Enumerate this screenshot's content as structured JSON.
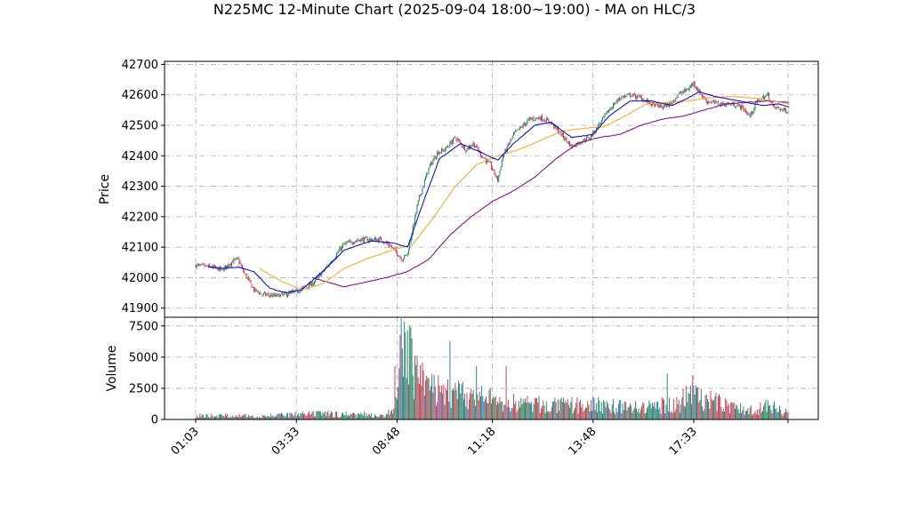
{
  "title": "N225MC 12-Minute Chart (2025-09-04 18:00~19:00) - MA on HLC/3",
  "colors": {
    "up": "#1a7f5a",
    "down": "#d62d4a",
    "vol_up": "#1a7f5a",
    "vol_down": "#d62d4a",
    "vol_alt": "#1f77b4",
    "ma_fast": "#0000cc",
    "ma_mid": "#f5a623",
    "ma_slow": "#800080",
    "grid": "#b0b0b0",
    "axis": "#000000"
  },
  "chart_data": [
    {
      "type": "candlestick",
      "ylabel": "Price",
      "ylim": [
        41870,
        42710
      ],
      "yticks": [
        41900,
        42000,
        42100,
        42200,
        42300,
        42400,
        42500,
        42600,
        42700
      ],
      "grid": true,
      "close_profile": [
        [
          0,
          42040
        ],
        [
          15,
          42035
        ],
        [
          25,
          42025
        ],
        [
          35,
          42055
        ],
        [
          40,
          42060
        ],
        [
          45,
          42020
        ],
        [
          55,
          41960
        ],
        [
          63,
          41945
        ],
        [
          75,
          41940
        ],
        [
          85,
          41945
        ],
        [
          95,
          41955
        ],
        [
          110,
          41980
        ],
        [
          125,
          42040
        ],
        [
          140,
          42110
        ],
        [
          155,
          42125
        ],
        [
          175,
          42125
        ],
        [
          185,
          42100
        ],
        [
          195,
          42060
        ],
        [
          200,
          42080
        ],
        [
          210,
          42250
        ],
        [
          220,
          42360
        ],
        [
          228,
          42410
        ],
        [
          235,
          42420
        ],
        [
          245,
          42460
        ],
        [
          255,
          42420
        ],
        [
          262,
          42440
        ],
        [
          270,
          42400
        ],
        [
          278,
          42370
        ],
        [
          285,
          42320
        ],
        [
          290,
          42400
        ],
        [
          300,
          42470
        ],
        [
          315,
          42520
        ],
        [
          325,
          42525
        ],
        [
          335,
          42510
        ],
        [
          345,
          42470
        ],
        [
          355,
          42430
        ],
        [
          365,
          42450
        ],
        [
          372,
          42460
        ],
        [
          380,
          42500
        ],
        [
          390,
          42550
        ],
        [
          400,
          42590
        ],
        [
          410,
          42600
        ],
        [
          420,
          42590
        ],
        [
          430,
          42570
        ],
        [
          440,
          42560
        ],
        [
          448,
          42570
        ],
        [
          455,
          42600
        ],
        [
          465,
          42620
        ],
        [
          470,
          42640
        ],
        [
          475,
          42610
        ],
        [
          482,
          42580
        ],
        [
          495,
          42570
        ],
        [
          505,
          42570
        ],
        [
          515,
          42560
        ],
        [
          523,
          42530
        ],
        [
          530,
          42580
        ],
        [
          540,
          42600
        ],
        [
          545,
          42560
        ],
        [
          555,
          42550
        ],
        [
          560,
          42545
        ]
      ],
      "n_candles": 560,
      "ma_fast_profile": [
        [
          12,
          42035
        ],
        [
          25,
          42030
        ],
        [
          40,
          42035
        ],
        [
          55,
          42020
        ],
        [
          70,
          41965
        ],
        [
          85,
          41950
        ],
        [
          100,
          41960
        ],
        [
          120,
          42020
        ],
        [
          140,
          42090
        ],
        [
          165,
          42120
        ],
        [
          185,
          42115
        ],
        [
          200,
          42100
        ],
        [
          215,
          42250
        ],
        [
          230,
          42390
        ],
        [
          250,
          42440
        ],
        [
          270,
          42410
        ],
        [
          285,
          42385
        ],
        [
          300,
          42440
        ],
        [
          320,
          42500
        ],
        [
          335,
          42510
        ],
        [
          355,
          42460
        ],
        [
          375,
          42470
        ],
        [
          390,
          42530
        ],
        [
          410,
          42580
        ],
        [
          430,
          42580
        ],
        [
          450,
          42565
        ],
        [
          465,
          42590
        ],
        [
          475,
          42610
        ],
        [
          490,
          42595
        ],
        [
          505,
          42585
        ],
        [
          520,
          42575
        ],
        [
          535,
          42565
        ],
        [
          550,
          42570
        ],
        [
          560,
          42560
        ]
      ],
      "ma_mid_profile": [
        [
          60,
          42030
        ],
        [
          80,
          41990
        ],
        [
          100,
          41960
        ],
        [
          120,
          41980
        ],
        [
          140,
          42030
        ],
        [
          160,
          42060
        ],
        [
          185,
          42090
        ],
        [
          205,
          42110
        ],
        [
          225,
          42200
        ],
        [
          245,
          42300
        ],
        [
          265,
          42370
        ],
        [
          285,
          42400
        ],
        [
          305,
          42420
        ],
        [
          325,
          42450
        ],
        [
          345,
          42480
        ],
        [
          365,
          42490
        ],
        [
          385,
          42495
        ],
        [
          405,
          42530
        ],
        [
          425,
          42570
        ],
        [
          445,
          42575
        ],
        [
          465,
          42580
        ],
        [
          485,
          42590
        ],
        [
          505,
          42595
        ],
        [
          525,
          42590
        ],
        [
          545,
          42580
        ],
        [
          560,
          42570
        ]
      ],
      "ma_slow_profile": [
        [
          110,
          42000
        ],
        [
          125,
          41985
        ],
        [
          140,
          41970
        ],
        [
          160,
          41985
        ],
        [
          180,
          42000
        ],
        [
          200,
          42020
        ],
        [
          220,
          42060
        ],
        [
          240,
          42140
        ],
        [
          260,
          42200
        ],
        [
          280,
          42250
        ],
        [
          300,
          42285
        ],
        [
          320,
          42330
        ],
        [
          340,
          42390
        ],
        [
          360,
          42440
        ],
        [
          380,
          42460
        ],
        [
          400,
          42470
        ],
        [
          420,
          42500
        ],
        [
          440,
          42520
        ],
        [
          460,
          42530
        ],
        [
          480,
          42550
        ],
        [
          500,
          42570
        ],
        [
          520,
          42575
        ],
        [
          540,
          42580
        ],
        [
          560,
          42575
        ]
      ],
      "x_tick_labels": [
        "01:03",
        "03:33",
        "08:48",
        "11:18",
        "13:48",
        "17:33"
      ],
      "x_tick_indices": [
        0,
        95,
        190,
        280,
        375,
        470
      ]
    },
    {
      "type": "bar",
      "ylabel": "Volume",
      "ylim": [
        0,
        8200
      ],
      "yticks": [
        0,
        2500,
        5000,
        7500
      ],
      "grid": true,
      "volume_profile": [
        [
          0,
          350
        ],
        [
          60,
          300
        ],
        [
          120,
          500
        ],
        [
          180,
          400
        ],
        [
          190,
          1400
        ],
        [
          195,
          7000
        ],
        [
          200,
          6000
        ],
        [
          210,
          3500
        ],
        [
          230,
          2500
        ],
        [
          260,
          2000
        ],
        [
          300,
          1500
        ],
        [
          340,
          1200
        ],
        [
          380,
          1300
        ],
        [
          420,
          1000
        ],
        [
          460,
          1500
        ],
        [
          470,
          2800
        ],
        [
          480,
          1800
        ],
        [
          520,
          800
        ],
        [
          540,
          1200
        ],
        [
          560,
          600
        ]
      ],
      "volume_spikes": [
        [
          188,
          4300
        ],
        [
          194,
          8100
        ],
        [
          198,
          7000
        ],
        [
          204,
          6500
        ],
        [
          240,
          6300
        ],
        [
          265,
          4300
        ],
        [
          293,
          4300
        ],
        [
          445,
          3700
        ],
        [
          460,
          2500
        ],
        [
          474,
          2600
        ]
      ]
    }
  ]
}
